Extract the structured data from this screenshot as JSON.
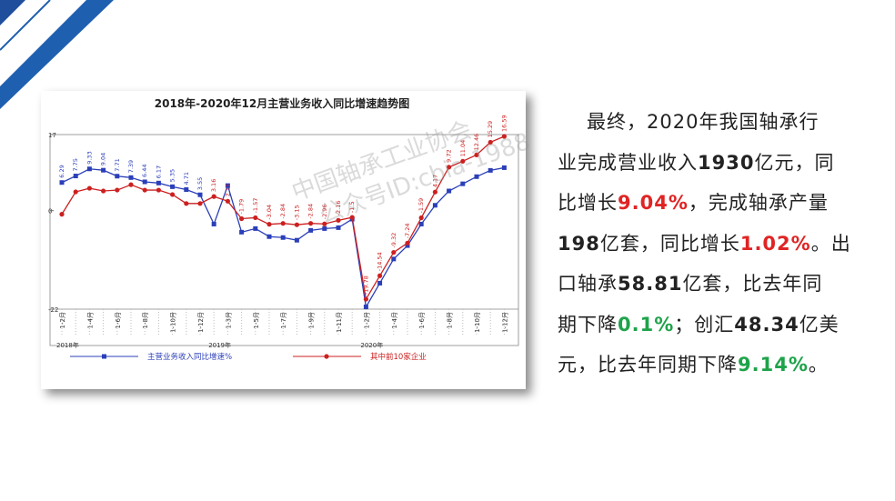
{
  "chart_data": {
    "type": "line",
    "title": "2018年-2020年12月主营业务收入同比增速趋势图",
    "categories": [
      "1-2月",
      null,
      "1-4月",
      null,
      "1-6月",
      null,
      "1-8月",
      null,
      "1-10月",
      null,
      "1-12月",
      null,
      "1-3月",
      null,
      "1-5月",
      null,
      "1-7月",
      null,
      "1-9月",
      null,
      "1-11月",
      null,
      "1-2月",
      null,
      "1-4月",
      null,
      "1-6月",
      null,
      "1-8月",
      null,
      "1-10月",
      null,
      "1-12月"
    ],
    "year_labels": [
      "2018年",
      "2019年",
      "2020年"
    ],
    "series": [
      {
        "name": "主营业务收入同比增速%",
        "color": "#2b3fb8",
        "values": [
          6.29,
          7.75,
          9.33,
          9.04,
          7.71,
          7.39,
          6.44,
          6.17,
          5.35,
          4.71,
          3.55,
          -3.0,
          5.6,
          -4.8,
          -4.0,
          -5.8,
          -6.0,
          -6.6,
          -4.4,
          -4.0,
          -3.8,
          -1.9,
          -21.5,
          -16.2,
          -10.8,
          -7.8,
          -3.0,
          1.2,
          4.4,
          6.0,
          7.6,
          9.0,
          9.6
        ]
      },
      {
        "name": "其中前10家企业",
        "color": "#cc2020",
        "values": [
          -0.8,
          4.2,
          5.0,
          4.4,
          4.6,
          5.8,
          4.6,
          4.6,
          3.6,
          1.6,
          1.6,
          3.16,
          2.11,
          -1.79,
          -1.57,
          -3.04,
          -2.84,
          -3.15,
          -2.84,
          -2.96,
          -2.16,
          -1.5,
          -19.78,
          -14.54,
          -9.32,
          -7.24,
          -1.59,
          4.17,
          9.72,
          11.04,
          12.46,
          15.29,
          16.59
        ]
      }
    ],
    "ylim": [
      -22,
      17
    ],
    "yticks": [
      -22,
      0,
      17
    ]
  },
  "watermark": [
    "中国轴承工业协会",
    "公众号ID:cbia-1988"
  ],
  "text": {
    "lines": [
      [
        {
          "text": "最终，2020年我国轴承行"
        }
      ],
      [
        {
          "text": "业完成营业收入"
        },
        {
          "text": "1930",
          "bold": true
        },
        {
          "text": "亿元，同"
        }
      ],
      [
        {
          "text": "比增长"
        },
        {
          "text": "9.04%",
          "bold": true,
          "color": "#e02424"
        },
        {
          "text": "，完成轴承产量"
        }
      ],
      [
        {
          "text": "198",
          "bold": true
        },
        {
          "text": "亿套，同比增长"
        },
        {
          "text": "1.02%",
          "bold": true,
          "color": "#e02424"
        },
        {
          "text": "。出"
        }
      ],
      [
        {
          "text": "口轴承"
        },
        {
          "text": "58.81",
          "bold": true
        },
        {
          "text": "亿套，比去年同"
        }
      ],
      [
        {
          "text": "期下降"
        },
        {
          "text": "0.1%",
          "bold": true,
          "color": "#1fa34a"
        },
        {
          "text": "；创汇"
        },
        {
          "text": "48.34",
          "bold": true
        },
        {
          "text": "亿美"
        }
      ],
      [
        {
          "text": "元，比去年同期下降"
        },
        {
          "text": "9.14%",
          "bold": true,
          "color": "#1fa34a"
        },
        {
          "text": "。"
        }
      ]
    ]
  }
}
